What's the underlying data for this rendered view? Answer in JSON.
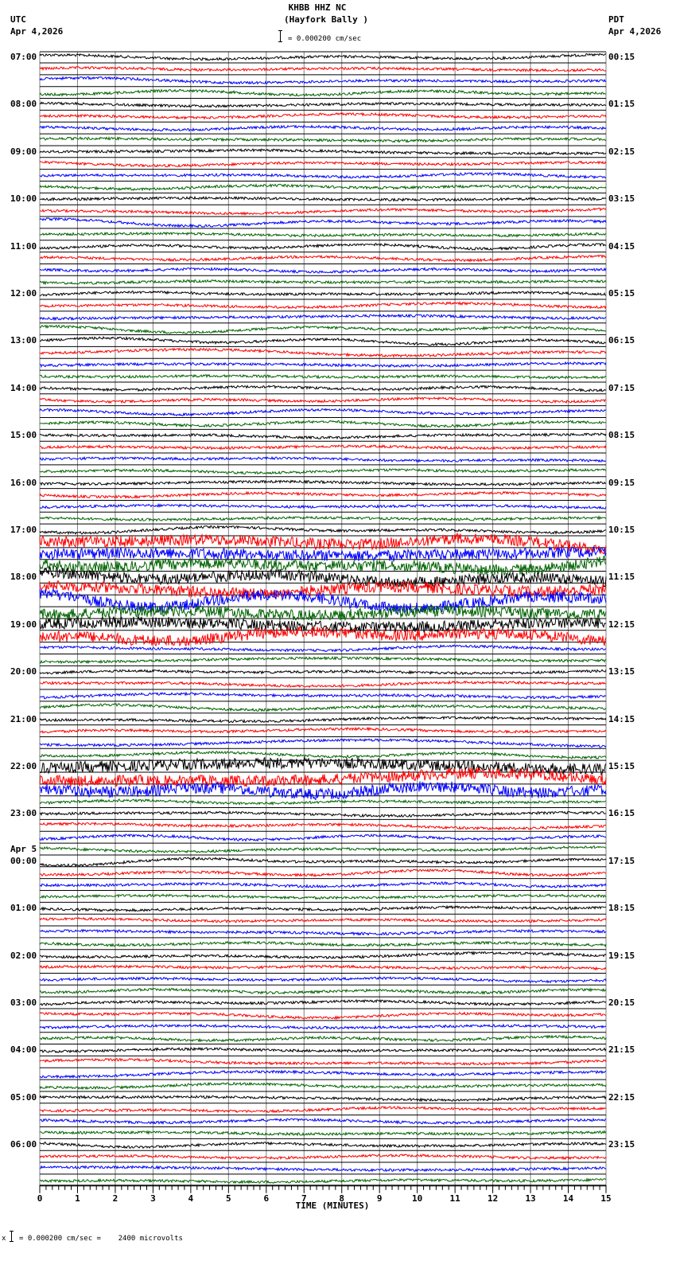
{
  "header": {
    "station": "KHBB HHZ NC",
    "location": "(Hayfork Bally )",
    "left_tz": "UTC",
    "left_date": "Apr 4,2026",
    "right_tz": "PDT",
    "right_date": "Apr 4,2026",
    "scale_text": "= 0.000200 cm/sec"
  },
  "footer": {
    "scale_text": "= 0.000200 cm/sec =    2400 microvolts",
    "prefix_glyph": "x"
  },
  "colors": {
    "traces": [
      "#000000",
      "#ff0000",
      "#0000ff",
      "#006400"
    ],
    "grid_vertical": "#808080",
    "baseline": "#000000",
    "background": "#ffffff"
  },
  "chart_data": {
    "type": "line",
    "title": "KHBB HHZ NC (Hayfork Bally )",
    "xlabel": "TIME (MINUTES)",
    "ylabel": "",
    "xlim": [
      0,
      15
    ],
    "x_ticks": [
      "0",
      "1",
      "2",
      "3",
      "4",
      "5",
      "6",
      "7",
      "8",
      "9",
      "10",
      "11",
      "12",
      "13",
      "14",
      "15"
    ],
    "minor_ticks_per_minute": 6,
    "traces_per_hour": 4,
    "trace_minutes": 15,
    "trace_colors_cycle": [
      "black",
      "red",
      "blue",
      "green"
    ],
    "grid": true,
    "scale": "0.000200 cm/sec = 2400 microvolts",
    "left_axis_labels": [
      {
        "row": 0,
        "text": "07:00"
      },
      {
        "row": 4,
        "text": "08:00"
      },
      {
        "row": 8,
        "text": "09:00"
      },
      {
        "row": 12,
        "text": "10:00"
      },
      {
        "row": 16,
        "text": "11:00"
      },
      {
        "row": 20,
        "text": "12:00"
      },
      {
        "row": 24,
        "text": "13:00"
      },
      {
        "row": 28,
        "text": "14:00"
      },
      {
        "row": 32,
        "text": "15:00"
      },
      {
        "row": 36,
        "text": "16:00"
      },
      {
        "row": 40,
        "text": "17:00"
      },
      {
        "row": 44,
        "text": "18:00"
      },
      {
        "row": 48,
        "text": "19:00"
      },
      {
        "row": 52,
        "text": "20:00"
      },
      {
        "row": 56,
        "text": "21:00"
      },
      {
        "row": 60,
        "text": "22:00"
      },
      {
        "row": 64,
        "text": "23:00"
      },
      {
        "row": 68,
        "text": "00:00",
        "date": "Apr 5"
      },
      {
        "row": 72,
        "text": "01:00"
      },
      {
        "row": 76,
        "text": "02:00"
      },
      {
        "row": 80,
        "text": "03:00"
      },
      {
        "row": 84,
        "text": "04:00"
      },
      {
        "row": 88,
        "text": "05:00"
      },
      {
        "row": 92,
        "text": "06:00"
      }
    ],
    "right_axis_labels": [
      {
        "row": 0,
        "text": "00:15"
      },
      {
        "row": 4,
        "text": "01:15"
      },
      {
        "row": 8,
        "text": "02:15"
      },
      {
        "row": 12,
        "text": "03:15"
      },
      {
        "row": 16,
        "text": "04:15"
      },
      {
        "row": 20,
        "text": "05:15"
      },
      {
        "row": 24,
        "text": "06:15"
      },
      {
        "row": 28,
        "text": "07:15"
      },
      {
        "row": 32,
        "text": "08:15"
      },
      {
        "row": 36,
        "text": "09:15"
      },
      {
        "row": 40,
        "text": "10:15"
      },
      {
        "row": 44,
        "text": "11:15"
      },
      {
        "row": 48,
        "text": "12:15"
      },
      {
        "row": 52,
        "text": "13:15"
      },
      {
        "row": 56,
        "text": "14:15"
      },
      {
        "row": 60,
        "text": "15:15"
      },
      {
        "row": 64,
        "text": "16:15"
      },
      {
        "row": 68,
        "text": "17:15"
      },
      {
        "row": 72,
        "text": "18:15"
      },
      {
        "row": 76,
        "text": "19:15"
      },
      {
        "row": 80,
        "text": "20:15"
      },
      {
        "row": 84,
        "text": "21:15"
      },
      {
        "row": 88,
        "text": "22:15"
      },
      {
        "row": 92,
        "text": "23:15"
      }
    ],
    "high_activity_rows": [
      41,
      42,
      43,
      44,
      45,
      46,
      47,
      48,
      49,
      60,
      61,
      62
    ]
  }
}
